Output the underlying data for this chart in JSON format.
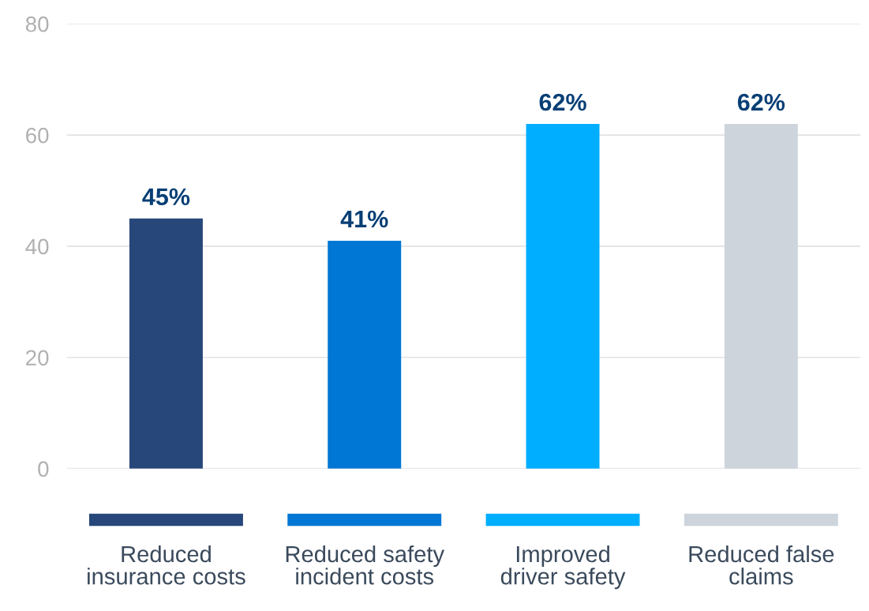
{
  "chart_data": {
    "type": "bar",
    "categories": [
      "Reduced\ninsurance costs",
      "Reduced safety\nincident costs",
      "Improved\ndriver safety",
      "Reduced false\nclaims"
    ],
    "values": [
      45,
      41,
      62,
      62
    ],
    "colors": [
      "#27477a",
      "#0077d4",
      "#00aeff",
      "#cdd4dc"
    ],
    "value_labels": [
      "45%",
      "41%",
      "62%",
      "62%"
    ],
    "ylim": [
      0,
      80
    ],
    "yticks": [
      0,
      20,
      40,
      60,
      80
    ],
    "grid": "y"
  }
}
